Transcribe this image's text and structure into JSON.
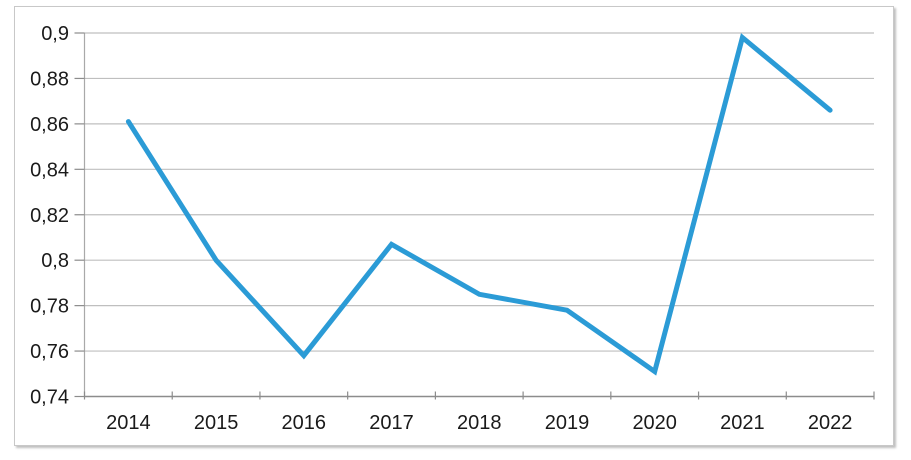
{
  "chart_data": {
    "type": "line",
    "title": "",
    "xlabel": "",
    "ylabel": "",
    "categories": [
      "2014",
      "2015",
      "2016",
      "2017",
      "2018",
      "2019",
      "2020",
      "2021",
      "2022"
    ],
    "series": [
      {
        "name": "",
        "values": [
          0.861,
          0.8,
          0.758,
          0.807,
          0.785,
          0.778,
          0.751,
          0.898,
          0.866
        ]
      }
    ],
    "ylim": [
      0.74,
      0.9
    ],
    "y_tick_step": 0.02,
    "y_tick_labels": [
      "0,74",
      "0,76",
      "0,78",
      "0,8",
      "0,82",
      "0,84",
      "0,86",
      "0,88",
      "0,9"
    ],
    "grid": true,
    "legend": false,
    "legend_position": "none",
    "styles": {
      "line_color": "#2B9BD6",
      "line_width": 5,
      "gridline_color": "#BFBFBF",
      "axis_color": "#8C8C8C",
      "y_axis_line_color": "#A9A9A9",
      "tick_color": "#8C8C8C",
      "label_color": "#1A1A1A",
      "frame_border_color": "#C8C8C8",
      "background_color": "#FFFFFF"
    }
  }
}
